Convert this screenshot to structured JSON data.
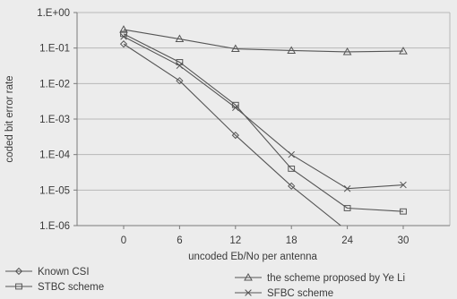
{
  "chart_data": {
    "type": "line",
    "xlabel": "uncoded Eb/No per antenna",
    "ylabel": "coded bit error rate",
    "x": [
      0,
      6,
      12,
      18,
      24,
      30
    ],
    "x_tick_labels": [
      "0",
      "6",
      "12",
      "18",
      "24",
      "30"
    ],
    "y_scale": "log",
    "ylim": [
      1e-06,
      1
    ],
    "y_tick_labels": [
      "1.E+00",
      "1.E-01",
      "1.E-02",
      "1.E-03",
      "1.E-04",
      "1.E-05",
      "1.E-06"
    ],
    "grid": "horizontal",
    "legend_position": "bottom",
    "colors": {
      "series": "#555555",
      "grid": "#b7b7b7",
      "background": "#ececec"
    },
    "series": [
      {
        "name": "Known CSI",
        "marker": "diamond",
        "x": [
          0,
          6,
          12,
          18,
          23.3
        ],
        "values": [
          0.13,
          0.012,
          0.00035,
          1.3e-05,
          1e-06
        ]
      },
      {
        "name": "the scheme proposed by Ye Li",
        "marker": "triangle",
        "x": [
          0,
          6,
          12,
          18,
          24,
          30
        ],
        "values": [
          0.33,
          0.18,
          0.095,
          0.085,
          0.078,
          0.082
        ]
      },
      {
        "name": "STBC scheme",
        "marker": "square",
        "x": [
          0,
          6,
          12,
          18,
          24,
          30
        ],
        "values": [
          0.25,
          0.04,
          0.0025,
          4e-05,
          3.1e-06,
          2.5e-06
        ]
      },
      {
        "name": "SFBC scheme",
        "marker": "x",
        "x": [
          0,
          6,
          12,
          18,
          24,
          30
        ],
        "values": [
          0.21,
          0.032,
          0.0021,
          0.0001,
          1.1e-05,
          1.4e-05
        ]
      }
    ]
  }
}
